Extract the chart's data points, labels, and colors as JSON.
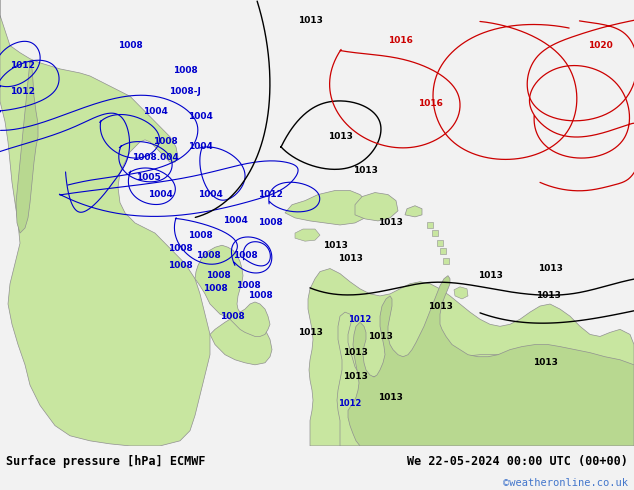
{
  "title_left": "Surface pressure [hPa] ECMWF",
  "title_right": "We 22-05-2024 00:00 UTC (00+00)",
  "credit": "©weatheronline.co.uk",
  "bg_color": "#f2f2f2",
  "ocean_color": "#e0e0e0",
  "land_color": "#c8e6a0",
  "land_color2": "#b8d890",
  "coast_color": "#909090",
  "figsize": [
    6.34,
    4.9
  ],
  "dpi": 100,
  "map_extent": [
    0,
    634,
    0,
    440
  ],
  "blue_isobar_color": "#0000cc",
  "black_isobar_color": "#000000",
  "red_isobar_color": "#cc0000"
}
